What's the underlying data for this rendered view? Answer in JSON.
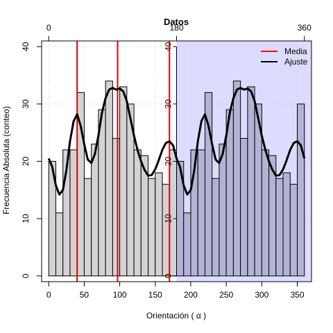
{
  "chart_data": {
    "type": "bar",
    "title": "Datos",
    "xlabel": "Orientación ( α )",
    "ylabel": "Frecuencia Absoluta (conteo)",
    "xlim": [
      -10,
      370
    ],
    "ylim": [
      -1,
      41
    ],
    "grid": true,
    "bin_width": 10,
    "bin_starts": [
      0,
      10,
      20,
      30,
      40,
      50,
      60,
      70,
      80,
      90,
      100,
      110,
      120,
      130,
      140,
      150,
      160,
      170,
      180,
      190,
      200,
      210,
      220,
      230,
      240,
      250,
      260,
      270,
      280,
      290,
      300,
      310,
      320,
      330,
      340,
      350
    ],
    "counts": [
      20,
      11,
      22,
      22,
      32,
      17,
      23,
      29,
      34,
      24,
      33,
      30,
      22,
      21,
      17,
      18,
      16,
      22,
      20,
      11,
      22,
      22,
      32,
      17,
      23,
      29,
      34,
      24,
      33,
      30,
      22,
      21,
      17,
      18,
      16,
      30
    ],
    "bottom_ticks": [
      0,
      50,
      100,
      150,
      200,
      250,
      300,
      350
    ],
    "top_ticks": [
      0,
      180,
      360
    ],
    "y_ticks": [
      0,
      10,
      20,
      30,
      40
    ],
    "inner_y_ticks": [
      0,
      10,
      20,
      30,
      40
    ],
    "shaded_region": [
      180,
      370
    ],
    "mean_lines": [
      40,
      97,
      170
    ],
    "fit": [
      [
        0,
        20.5
      ],
      [
        5,
        19.0
      ],
      [
        10,
        15.8
      ],
      [
        15,
        14.2
      ],
      [
        20,
        15.0
      ],
      [
        25,
        18.5
      ],
      [
        30,
        23.5
      ],
      [
        35,
        27.0
      ],
      [
        40,
        28.2
      ],
      [
        45,
        26.2
      ],
      [
        50,
        23.0
      ],
      [
        55,
        20.3
      ],
      [
        60,
        19.7
      ],
      [
        65,
        21.3
      ],
      [
        70,
        24.5
      ],
      [
        75,
        28.5
      ],
      [
        80,
        31.0
      ],
      [
        85,
        32.5
      ],
      [
        90,
        32.8
      ],
      [
        95,
        32.5
      ],
      [
        100,
        32.7
      ],
      [
        105,
        32.2
      ],
      [
        110,
        30.5
      ],
      [
        115,
        27.5
      ],
      [
        120,
        24.5
      ],
      [
        125,
        22.0
      ],
      [
        130,
        20.0
      ],
      [
        135,
        18.5
      ],
      [
        140,
        17.5
      ],
      [
        145,
        17.6
      ],
      [
        150,
        18.6
      ],
      [
        155,
        20.2
      ],
      [
        160,
        22.0
      ],
      [
        165,
        23.2
      ],
      [
        170,
        23.5
      ],
      [
        175,
        22.8
      ],
      [
        180,
        20.5
      ],
      [
        185,
        19.0
      ],
      [
        190,
        15.8
      ],
      [
        195,
        14.2
      ],
      [
        200,
        15.0
      ],
      [
        205,
        18.5
      ],
      [
        210,
        23.5
      ],
      [
        215,
        27.0
      ],
      [
        220,
        28.2
      ],
      [
        225,
        26.2
      ],
      [
        230,
        23.0
      ],
      [
        235,
        20.3
      ],
      [
        240,
        19.7
      ],
      [
        245,
        21.3
      ],
      [
        250,
        24.5
      ],
      [
        255,
        28.5
      ],
      [
        260,
        31.0
      ],
      [
        265,
        32.5
      ],
      [
        270,
        32.8
      ],
      [
        275,
        32.5
      ],
      [
        280,
        32.7
      ],
      [
        285,
        32.2
      ],
      [
        290,
        30.5
      ],
      [
        295,
        27.5
      ],
      [
        300,
        24.5
      ],
      [
        305,
        22.0
      ],
      [
        310,
        20.0
      ],
      [
        315,
        18.5
      ],
      [
        320,
        17.5
      ],
      [
        325,
        17.6
      ],
      [
        330,
        18.6
      ],
      [
        335,
        20.2
      ],
      [
        340,
        22.0
      ],
      [
        345,
        23.2
      ],
      [
        350,
        23.5
      ],
      [
        355,
        22.8
      ],
      [
        360,
        20.5
      ]
    ],
    "legend": {
      "position": "top-right",
      "entries": [
        {
          "name": "Media",
          "color": "#ff0000"
        },
        {
          "name": "Ajuste",
          "color": "#000000"
        }
      ]
    },
    "colors": {
      "bars_left": "#d3d3d3",
      "bars_right": "#b3b3d6",
      "shade": "#dcdcff",
      "mean": "#dd0000",
      "fit": "#000000"
    }
  }
}
